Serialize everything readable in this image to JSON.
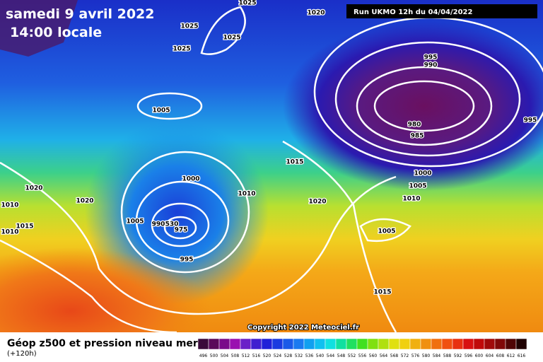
{
  "header": {
    "date": "samedi 9 avril 2022",
    "time": "14:00 locale",
    "run": "Run UKMO 12h du 04/04/2022"
  },
  "footer": {
    "copyright": "Copyright 2022 Meteociel.fr",
    "title": "Géop z500 et pression niveau mer",
    "lead": "(+120h)"
  },
  "isobar_labels": [
    "1025",
    "1020",
    "1025",
    "1025",
    "1025",
    "995",
    "990",
    "1005",
    "980",
    "985",
    "995",
    "1015",
    "1000",
    "1000",
    "1005",
    "1020",
    "1010",
    "1010",
    "1020",
    "1020",
    "1010",
    "1005",
    "1015",
    "990",
    "530",
    "975",
    "1005",
    "1010",
    "995",
    "1015"
  ],
  "color_scale": {
    "labels": [
      "496",
      "500",
      "504",
      "508",
      "512",
      "516",
      "520",
      "524",
      "528",
      "532",
      "536",
      "540",
      "544",
      "548",
      "552",
      "556",
      "560",
      "564",
      "568",
      "572",
      "576",
      "580",
      "584",
      "588",
      "592",
      "596",
      "600",
      "604",
      "608",
      "612",
      "616"
    ],
    "colors": [
      "#3a0a3a",
      "#5a0a5a",
      "#7a0a8a",
      "#9a10b0",
      "#6a20c8",
      "#4020d0",
      "#2020d8",
      "#1a3ae0",
      "#1a5ae8",
      "#1a7af0",
      "#10a0f0",
      "#10c0f0",
      "#10e0e0",
      "#10e0a0",
      "#20e060",
      "#40e020",
      "#80e010",
      "#b0e010",
      "#e0e010",
      "#f0d010",
      "#f0b010",
      "#f09010",
      "#f07010",
      "#f05010",
      "#e83010",
      "#d81010",
      "#c00a0a",
      "#a00a0a",
      "#800808",
      "#500505",
      "#200202"
    ]
  }
}
